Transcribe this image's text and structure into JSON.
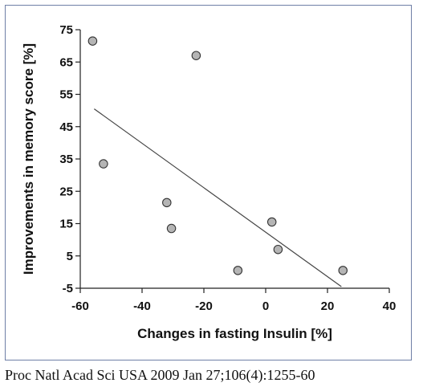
{
  "chart_data": {
    "type": "scatter",
    "xlabel": "Changes in fasting Insulin [%]",
    "ylabel": "Improvements in memory score [%]",
    "xlim": [
      -60,
      40
    ],
    "ylim": [
      -5,
      75
    ],
    "xticks": [
      -60,
      -40,
      -20,
      0,
      20,
      40
    ],
    "yticks": [
      -5,
      5,
      15,
      25,
      35,
      45,
      55,
      65,
      75
    ],
    "grid": false,
    "series": [
      {
        "points": [
          {
            "x": -56,
            "y": 71.5
          },
          {
            "x": -22.5,
            "y": 67
          },
          {
            "x": -52.5,
            "y": 33.5
          },
          {
            "x": -32,
            "y": 21.5
          },
          {
            "x": -30.5,
            "y": 13.5
          },
          {
            "x": 2,
            "y": 15.5
          },
          {
            "x": 4,
            "y": 7
          },
          {
            "x": -9,
            "y": 0.5
          },
          {
            "x": 25,
            "y": 0.5
          }
        ]
      }
    ],
    "trendline": {
      "x": [
        -55.5,
        24.5
      ],
      "y": [
        50.5,
        -4.5
      ]
    },
    "colors": {
      "marker_fill": "#b5b5b5",
      "marker_stroke": "#333333",
      "line": "#444444",
      "axis": "#222222"
    }
  },
  "citation": "Proc Natl Acad Sci USA 2009 Jan 27;106(4):1255-60"
}
